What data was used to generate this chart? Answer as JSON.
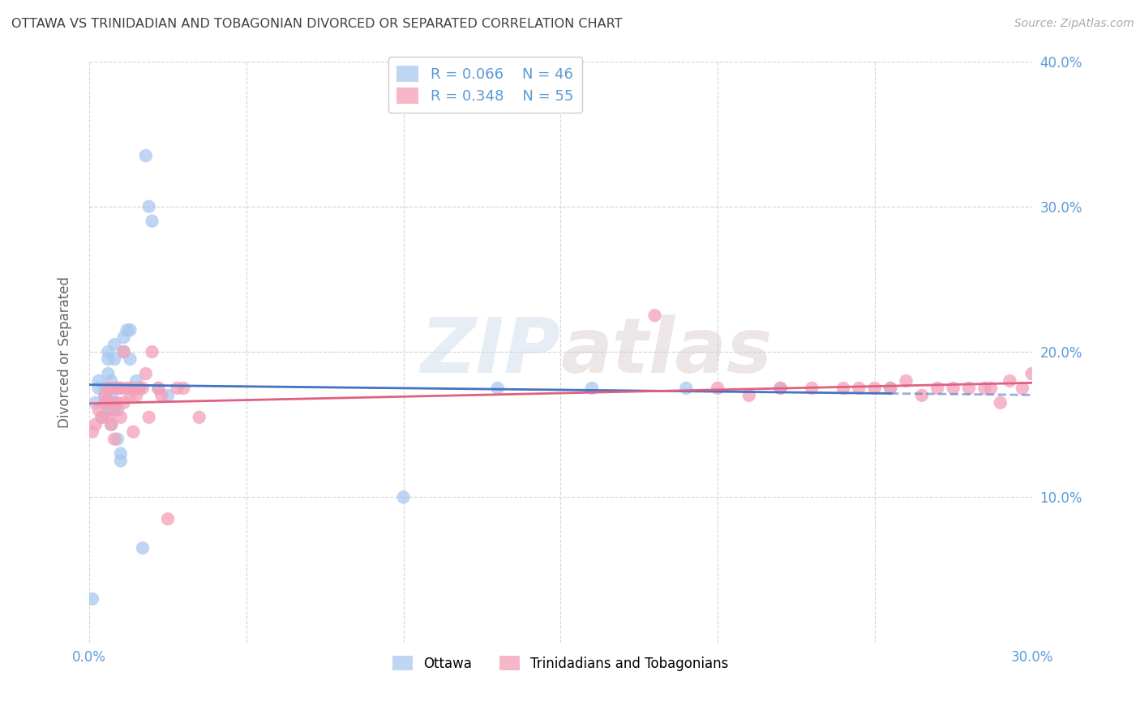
{
  "title": "OTTAWA VS TRINIDADIAN AND TOBAGONIAN DIVORCED OR SEPARATED CORRELATION CHART",
  "source": "Source: ZipAtlas.com",
  "ylabel_label": "Divorced or Separated",
  "xlim": [
    0.0,
    0.3
  ],
  "ylim": [
    0.0,
    0.4
  ],
  "legend_entries": [
    {
      "label": "Ottawa",
      "R": "0.066",
      "N": "46",
      "scatter_color": "#a8c8f0",
      "line_color": "#4472c4"
    },
    {
      "label": "Trinidadians and Tobagonians",
      "R": "0.348",
      "N": "55",
      "scatter_color": "#f4a0b8",
      "line_color": "#e06080"
    }
  ],
  "background_color": "#ffffff",
  "grid_color": "#d0d0d0",
  "axis_tick_color": "#5b9bd5",
  "title_color": "#404040",
  "source_color": "#aaaaaa",
  "watermark": "ZIPatlas",
  "ottawa_x": [
    0.001,
    0.002,
    0.003,
    0.003,
    0.004,
    0.005,
    0.005,
    0.005,
    0.006,
    0.006,
    0.006,
    0.006,
    0.007,
    0.007,
    0.007,
    0.007,
    0.007,
    0.008,
    0.008,
    0.008,
    0.008,
    0.009,
    0.009,
    0.01,
    0.01,
    0.01,
    0.011,
    0.011,
    0.012,
    0.013,
    0.013,
    0.014,
    0.015,
    0.016,
    0.017,
    0.018,
    0.019,
    0.02,
    0.022,
    0.025,
    0.1,
    0.13,
    0.16,
    0.19,
    0.22,
    0.255
  ],
  "ottawa_y": [
    0.03,
    0.165,
    0.18,
    0.175,
    0.155,
    0.17,
    0.165,
    0.175,
    0.16,
    0.185,
    0.195,
    0.2,
    0.15,
    0.16,
    0.165,
    0.17,
    0.18,
    0.165,
    0.175,
    0.195,
    0.205,
    0.14,
    0.16,
    0.125,
    0.13,
    0.175,
    0.2,
    0.21,
    0.215,
    0.195,
    0.215,
    0.175,
    0.18,
    0.175,
    0.065,
    0.335,
    0.3,
    0.29,
    0.175,
    0.17,
    0.1,
    0.175,
    0.175,
    0.175,
    0.175,
    0.175
  ],
  "trinidadian_x": [
    0.001,
    0.002,
    0.003,
    0.004,
    0.005,
    0.005,
    0.006,
    0.006,
    0.007,
    0.007,
    0.007,
    0.008,
    0.008,
    0.009,
    0.009,
    0.01,
    0.01,
    0.011,
    0.011,
    0.012,
    0.013,
    0.013,
    0.014,
    0.015,
    0.016,
    0.017,
    0.018,
    0.019,
    0.02,
    0.022,
    0.023,
    0.025,
    0.028,
    0.03,
    0.035,
    0.18,
    0.2,
    0.21,
    0.22,
    0.23,
    0.24,
    0.245,
    0.25,
    0.255,
    0.26,
    0.265,
    0.27,
    0.275,
    0.28,
    0.285,
    0.287,
    0.29,
    0.293,
    0.297,
    0.3
  ],
  "trinidadian_y": [
    0.145,
    0.15,
    0.16,
    0.155,
    0.165,
    0.17,
    0.155,
    0.175,
    0.165,
    0.175,
    0.15,
    0.14,
    0.16,
    0.165,
    0.175,
    0.155,
    0.175,
    0.165,
    0.2,
    0.175,
    0.175,
    0.17,
    0.145,
    0.17,
    0.175,
    0.175,
    0.185,
    0.155,
    0.2,
    0.175,
    0.17,
    0.085,
    0.175,
    0.175,
    0.155,
    0.225,
    0.175,
    0.17,
    0.175,
    0.175,
    0.175,
    0.175,
    0.175,
    0.175,
    0.18,
    0.17,
    0.175,
    0.175,
    0.175,
    0.175,
    0.175,
    0.165,
    0.18,
    0.175,
    0.185
  ],
  "x_ticks": [
    0.0,
    0.05,
    0.1,
    0.15,
    0.2,
    0.25,
    0.3
  ],
  "y_ticks": [
    0.0,
    0.1,
    0.2,
    0.3,
    0.4
  ],
  "x_tick_labels": [
    "0.0%",
    "",
    "",
    "",
    "",
    "",
    "30.0%"
  ],
  "y_tick_labels_right": [
    "",
    "10.0%",
    "20.0%",
    "30.0%",
    "40.0%"
  ]
}
